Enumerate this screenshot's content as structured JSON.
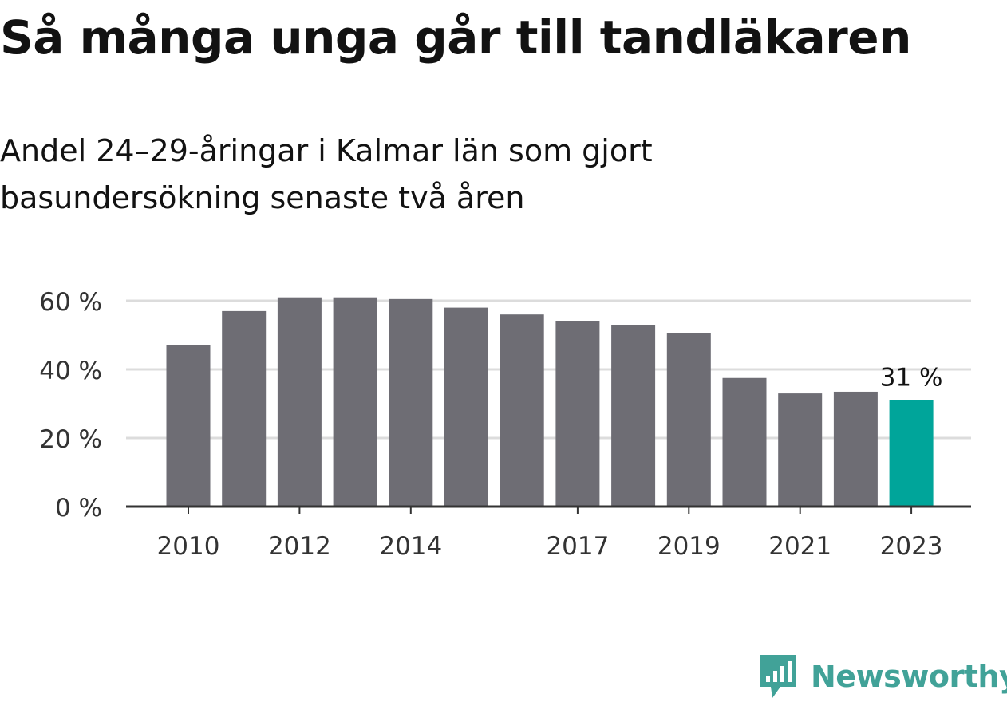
{
  "title": "Så många unga går till tandläkaren",
  "subtitle": "Andel 24–29-åringar i Kalmar län som gjort basundersökning senaste två åren",
  "brand": "Newsworthy",
  "colors": {
    "bar": "#6e6d74",
    "highlight": "#00a59a",
    "grid": "#dcdcdc",
    "axis": "#333333",
    "brand": "#41a298"
  },
  "chart_data": {
    "type": "bar",
    "categories": [
      "2010",
      "2011",
      "2012",
      "2013",
      "2014",
      "2015",
      "2016",
      "2017",
      "2018",
      "2019",
      "2020",
      "2021",
      "2022",
      "2023"
    ],
    "values": [
      47,
      57,
      61,
      61,
      60.5,
      58,
      56,
      54,
      53,
      50.5,
      37.5,
      33,
      33.5,
      31
    ],
    "ylim": [
      0,
      60
    ],
    "yticks": [
      0,
      20,
      40,
      60
    ],
    "ytick_labels": [
      "0 %",
      "20 %",
      "40 %",
      "60 %"
    ],
    "xtick_labels": [
      "2010",
      "2012",
      "2014",
      "2017",
      "2019",
      "2021",
      "2023"
    ],
    "highlight_category": "2023",
    "highlight_label": "31 %",
    "grid": true
  }
}
